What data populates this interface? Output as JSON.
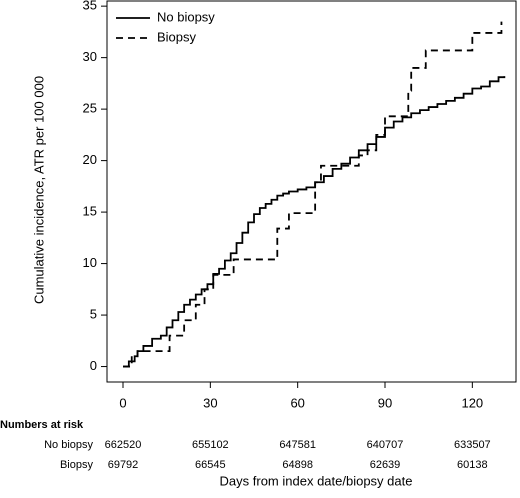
{
  "chart_data": {
    "type": "step",
    "x_label": "Days from index date/biopsy date",
    "y_label": "Cumulative incidence, ATR per 100 000",
    "xlim": [
      -5.5,
      135
    ],
    "ylim": [
      -1.5,
      35.5
    ],
    "xticks": [
      0,
      30,
      60,
      90,
      120
    ],
    "yticks": [
      0,
      5,
      10,
      15,
      20,
      25,
      30,
      35
    ],
    "legend": "top-left",
    "series": [
      {
        "name": "No biopsy",
        "color": "#000000",
        "dash": "solid",
        "x": [
          0,
          2,
          4,
          5,
          7,
          10,
          13,
          15,
          17,
          19,
          21,
          23,
          25,
          27,
          29,
          31,
          33,
          35,
          37,
          39,
          41,
          43,
          45,
          47,
          49,
          51,
          53,
          55,
          57,
          60,
          63,
          66,
          69,
          72,
          75,
          78,
          81,
          84,
          87,
          90,
          93,
          96,
          99,
          102,
          105,
          108,
          111,
          114,
          117,
          120,
          123,
          126,
          129,
          131
        ],
        "values": [
          0,
          0.5,
          1,
          1.5,
          2,
          2.7,
          3,
          3.8,
          4.5,
          5.3,
          6,
          6.5,
          7,
          7.5,
          8,
          9,
          9.5,
          10.3,
          11,
          12,
          13,
          14,
          14.8,
          15.4,
          15.8,
          16.2,
          16.6,
          16.8,
          17,
          17.2,
          17.4,
          17.9,
          18.5,
          19.2,
          19.7,
          20.3,
          21,
          21.6,
          22.3,
          23.2,
          23.8,
          24.2,
          24.6,
          24.9,
          25.2,
          25.5,
          25.8,
          26.1,
          26.5,
          27,
          27.2,
          27.7,
          28.1,
          28.2
        ]
      },
      {
        "name": "Biopsy",
        "color": "#000000",
        "dash": "dashed",
        "x": [
          0,
          3,
          5,
          16,
          21,
          25,
          28,
          31,
          38,
          53,
          57,
          66,
          68,
          81,
          84,
          87,
          90,
          98,
          99,
          104,
          120,
          130
        ],
        "values": [
          0,
          1,
          1.5,
          3,
          4.5,
          6,
          7.5,
          8.9,
          10.4,
          13.4,
          14.9,
          17.9,
          19.5,
          20.5,
          21,
          22.5,
          24.3,
          26.8,
          29,
          30.7,
          32.4,
          33.5
        ]
      }
    ]
  },
  "risk_table": {
    "title": "Numbers at risk",
    "rows": [
      {
        "name": "No biopsy",
        "values": [
          662520,
          655102,
          647581,
          640707,
          633507
        ]
      },
      {
        "name": "Biopsy",
        "values": [
          69792,
          66545,
          64898,
          62639,
          60138
        ]
      }
    ]
  }
}
